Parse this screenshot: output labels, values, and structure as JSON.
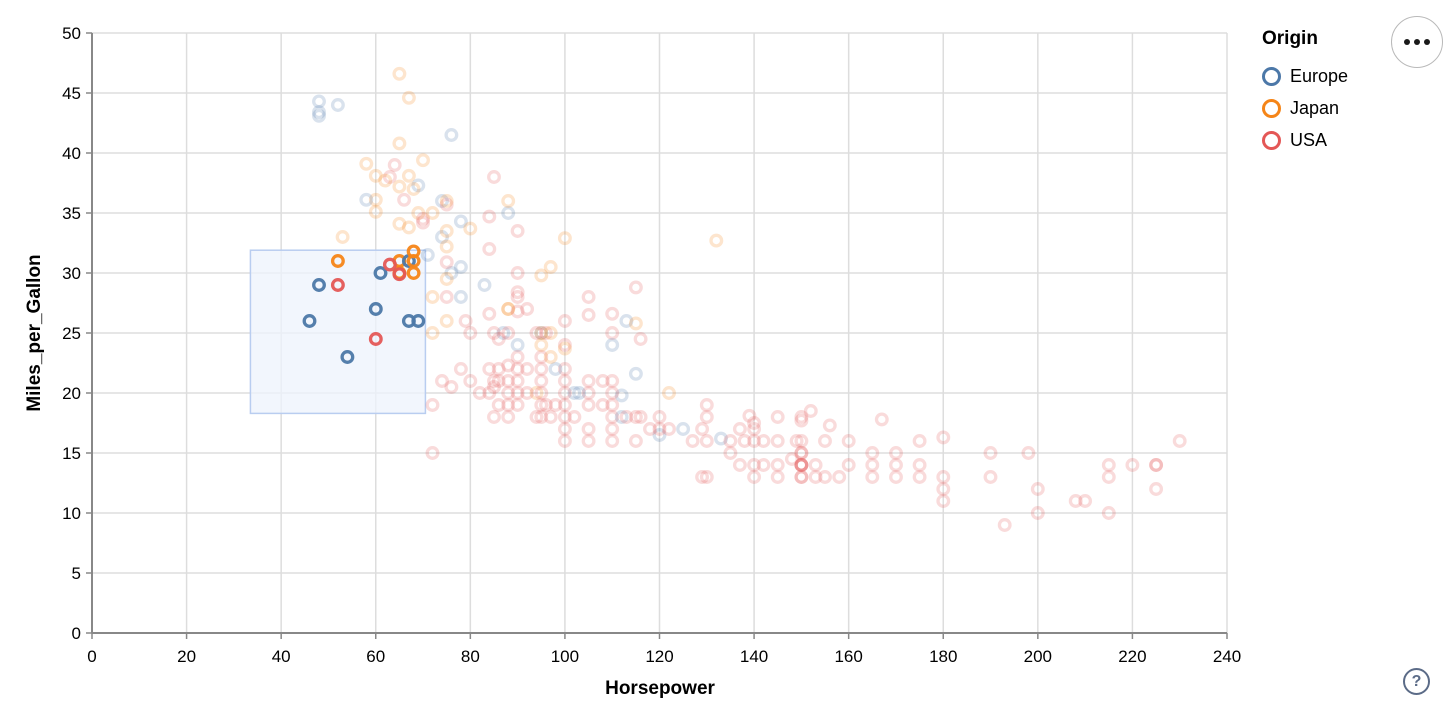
{
  "chart_data": {
    "type": "scatter",
    "title": "",
    "xlabel": "Horsepower",
    "ylabel": "Miles_per_Gallon",
    "xlim": [
      0,
      240
    ],
    "ylim": [
      0,
      50
    ],
    "x_ticks": [
      0,
      20,
      40,
      60,
      80,
      100,
      120,
      140,
      160,
      180,
      200,
      220,
      240
    ],
    "y_ticks": [
      0,
      5,
      10,
      15,
      20,
      25,
      30,
      35,
      40,
      45,
      50
    ],
    "grid": true,
    "legend": {
      "title": "Origin",
      "position": "top-right",
      "entries": [
        {
          "label": "Europe",
          "origin": "E",
          "color": "#4c78a8"
        },
        {
          "label": "Japan",
          "origin": "J",
          "color": "#f58518"
        },
        {
          "label": "USA",
          "origin": "U",
          "color": "#e45756"
        }
      ]
    },
    "origin_colors": {
      "E": "#4c78a8",
      "J": "#f58518",
      "U": "#e45756"
    },
    "brush_selection": {
      "hp": [
        33.5,
        70.5
      ],
      "mpg": [
        18.3,
        31.9
      ],
      "fill": "#eef3fc",
      "fill_opacity": 0.75,
      "stroke": "#b9cdf0"
    },
    "point_style": {
      "radius": 5.3,
      "stroke_width": 3.3,
      "faded_opacity": 0.21,
      "selected_opacity": 0.95
    },
    "series_key": [
      "Horsepower",
      "Miles_per_Gallon",
      "Origin"
    ],
    "points": [
      [
        65,
        46.6,
        "J"
      ],
      [
        67,
        44.6,
        "J"
      ],
      [
        48,
        44.3,
        "E"
      ],
      [
        52,
        44,
        "E"
      ],
      [
        48,
        43.4,
        "E"
      ],
      [
        48,
        43.1,
        "E"
      ],
      [
        76,
        41.5,
        "E"
      ],
      [
        65,
        40.8,
        "J"
      ],
      [
        70,
        39.4,
        "J"
      ],
      [
        58,
        39.1,
        "J"
      ],
      [
        64,
        39,
        "U"
      ],
      [
        60,
        38.1,
        "J"
      ],
      [
        67,
        38.1,
        "J"
      ],
      [
        63,
        38,
        "U"
      ],
      [
        85,
        38,
        "U"
      ],
      [
        62,
        37.7,
        "J"
      ],
      [
        65,
        37.2,
        "J"
      ],
      [
        69,
        37.3,
        "E"
      ],
      [
        68,
        37,
        "J"
      ],
      [
        74,
        36,
        "E"
      ],
      [
        66,
        36.1,
        "U"
      ],
      [
        60,
        36.1,
        "J"
      ],
      [
        58,
        36.1,
        "E"
      ],
      [
        88,
        35,
        "E"
      ],
      [
        60,
        35.1,
        "J"
      ],
      [
        69,
        35,
        "J"
      ],
      [
        84,
        34.7,
        "U"
      ],
      [
        70,
        34.5,
        "U"
      ],
      [
        70,
        34.2,
        "U"
      ],
      [
        78,
        34.3,
        "E"
      ],
      [
        65,
        34.1,
        "J"
      ],
      [
        67,
        33.8,
        "J"
      ],
      [
        53,
        33,
        "J"
      ],
      [
        74,
        33,
        "E"
      ],
      [
        75,
        33.5,
        "J"
      ],
      [
        72,
        35,
        "J"
      ],
      [
        75,
        35.7,
        "U"
      ],
      [
        88,
        36,
        "J"
      ],
      [
        75,
        36,
        "J"
      ],
      [
        80,
        33.7,
        "J"
      ],
      [
        90,
        33.5,
        "U"
      ],
      [
        100,
        32.9,
        "J"
      ],
      [
        132,
        32.7,
        "J"
      ],
      [
        75,
        32.2,
        "J"
      ],
      [
        84,
        32,
        "U"
      ],
      [
        52,
        31,
        "J"
      ],
      [
        65,
        31,
        "J"
      ],
      [
        67,
        31,
        "E"
      ],
      [
        61,
        30,
        "E"
      ],
      [
        65,
        30,
        "J"
      ],
      [
        68,
        31.8,
        "J"
      ],
      [
        68,
        31,
        "J"
      ],
      [
        68,
        30,
        "J"
      ],
      [
        63,
        30.7,
        "U"
      ],
      [
        65,
        29.9,
        "U"
      ],
      [
        48,
        29,
        "E"
      ],
      [
        52,
        29,
        "U"
      ],
      [
        71,
        31.5,
        "E"
      ],
      [
        76,
        30,
        "E"
      ],
      [
        83,
        29,
        "E"
      ],
      [
        97,
        30.5,
        "J"
      ],
      [
        75,
        30.9,
        "U"
      ],
      [
        75,
        29.5,
        "J"
      ],
      [
        78,
        30.5,
        "E"
      ],
      [
        95,
        29.8,
        "J"
      ],
      [
        90,
        30,
        "U"
      ],
      [
        90,
        28.4,
        "U"
      ],
      [
        46,
        26,
        "E"
      ],
      [
        60,
        27,
        "E"
      ],
      [
        67,
        26,
        "E"
      ],
      [
        69,
        26,
        "E"
      ],
      [
        60,
        24.5,
        "U"
      ],
      [
        54,
        23,
        "E"
      ],
      [
        88,
        27,
        "J"
      ],
      [
        88,
        27,
        "J"
      ],
      [
        87,
        25,
        "E"
      ],
      [
        90,
        24,
        "E"
      ],
      [
        95,
        25,
        "E"
      ],
      [
        113,
        26,
        "E"
      ],
      [
        95,
        24,
        "J"
      ],
      [
        95,
        25,
        "J"
      ],
      [
        75,
        28,
        "U"
      ],
      [
        80,
        25,
        "U"
      ],
      [
        79,
        26,
        "U"
      ],
      [
        84,
        26.6,
        "U"
      ],
      [
        90,
        26.8,
        "U"
      ],
      [
        110,
        26.6,
        "U"
      ],
      [
        105,
        26.5,
        "U"
      ],
      [
        110,
        25,
        "U"
      ],
      [
        115,
        25.8,
        "J"
      ],
      [
        100,
        26,
        "U"
      ],
      [
        92,
        27,
        "U"
      ],
      [
        96,
        25,
        "U"
      ],
      [
        72,
        25,
        "J"
      ],
      [
        86,
        24.5,
        "U"
      ],
      [
        116,
        24.5,
        "U"
      ],
      [
        110,
        24,
        "E"
      ],
      [
        72,
        28,
        "J"
      ],
      [
        75,
        26,
        "J"
      ],
      [
        85,
        25,
        "U"
      ],
      [
        88,
        25,
        "U"
      ],
      [
        97,
        25,
        "J"
      ],
      [
        94,
        25,
        "U"
      ],
      [
        100,
        24,
        "U"
      ],
      [
        90,
        28,
        "U"
      ],
      [
        78,
        28,
        "E"
      ],
      [
        105,
        28,
        "U"
      ],
      [
        115,
        28.8,
        "U"
      ],
      [
        95,
        22,
        "U"
      ],
      [
        85,
        21,
        "U"
      ],
      [
        90,
        21,
        "U"
      ],
      [
        86,
        21,
        "U"
      ],
      [
        88,
        21,
        "U"
      ],
      [
        90,
        20,
        "U"
      ],
      [
        95,
        23,
        "U"
      ],
      [
        95,
        21,
        "U"
      ],
      [
        100,
        22,
        "U"
      ],
      [
        100,
        21,
        "U"
      ],
      [
        105,
        21,
        "U"
      ],
      [
        105,
        20,
        "U"
      ],
      [
        88,
        22.3,
        "U"
      ],
      [
        90,
        22,
        "U"
      ],
      [
        90,
        23,
        "U"
      ],
      [
        85,
        20.5,
        "U"
      ],
      [
        98,
        22,
        "E"
      ],
      [
        102,
        20,
        "E"
      ],
      [
        103,
        20,
        "E"
      ],
      [
        115,
        21.6,
        "E"
      ],
      [
        112,
        19.8,
        "E"
      ],
      [
        122,
        20,
        "J"
      ],
      [
        100,
        23.7,
        "J"
      ],
      [
        94,
        20,
        "J"
      ],
      [
        97,
        23,
        "J"
      ],
      [
        110,
        21,
        "U"
      ],
      [
        110,
        20,
        "U"
      ],
      [
        108,
        21,
        "U"
      ],
      [
        92,
        22,
        "U"
      ],
      [
        84,
        22,
        "U"
      ],
      [
        86,
        22,
        "U"
      ],
      [
        74,
        21,
        "U"
      ],
      [
        76,
        20.5,
        "U"
      ],
      [
        80,
        21,
        "U"
      ],
      [
        78,
        22,
        "U"
      ],
      [
        82,
        20,
        "U"
      ],
      [
        72,
        19,
        "U"
      ],
      [
        97,
        18,
        "U"
      ],
      [
        100,
        19,
        "U"
      ],
      [
        88,
        19,
        "U"
      ],
      [
        100,
        18,
        "U"
      ],
      [
        110,
        18,
        "U"
      ],
      [
        110,
        19,
        "U"
      ],
      [
        88,
        18,
        "U"
      ],
      [
        105,
        19,
        "U"
      ],
      [
        105,
        16,
        "U"
      ],
      [
        100,
        17,
        "U"
      ],
      [
        95,
        18,
        "U"
      ],
      [
        100,
        16,
        "U"
      ],
      [
        110,
        17,
        "U"
      ],
      [
        112,
        18,
        "E"
      ],
      [
        120,
        16.5,
        "E"
      ],
      [
        125,
        17,
        "E"
      ],
      [
        133,
        16.2,
        "E"
      ],
      [
        130,
        18,
        "U"
      ],
      [
        140,
        17,
        "U"
      ],
      [
        150,
        18,
        "U"
      ],
      [
        150,
        16,
        "U"
      ],
      [
        139,
        18.1,
        "U"
      ],
      [
        140,
        17.5,
        "U"
      ],
      [
        150,
        17.7,
        "U"
      ],
      [
        130,
        19,
        "U"
      ],
      [
        129,
        17,
        "U"
      ],
      [
        138,
        16,
        "U"
      ],
      [
        155,
        16,
        "U"
      ],
      [
        165,
        15,
        "U"
      ],
      [
        150,
        15,
        "U"
      ],
      [
        150,
        15,
        "U"
      ],
      [
        170,
        15,
        "U"
      ],
      [
        190,
        15,
        "U"
      ],
      [
        198,
        15,
        "U"
      ],
      [
        149,
        16,
        "U"
      ],
      [
        145,
        18,
        "U"
      ],
      [
        142,
        16,
        "U"
      ],
      [
        137,
        17,
        "U"
      ],
      [
        152,
        18.5,
        "U"
      ],
      [
        156,
        17.3,
        "U"
      ],
      [
        167,
        17.8,
        "U"
      ],
      [
        180,
        16.3,
        "U"
      ],
      [
        230,
        16,
        "U"
      ],
      [
        88,
        20,
        "U"
      ],
      [
        90,
        19,
        "U"
      ],
      [
        95,
        20,
        "U"
      ],
      [
        95,
        19,
        "U"
      ],
      [
        100,
        20,
        "U"
      ],
      [
        105,
        17,
        "U"
      ],
      [
        110,
        16,
        "U"
      ],
      [
        115,
        18,
        "U"
      ],
      [
        115,
        16,
        "U"
      ],
      [
        120,
        18,
        "U"
      ],
      [
        120,
        17,
        "U"
      ],
      [
        130,
        16,
        "U"
      ],
      [
        135,
        16,
        "U"
      ],
      [
        135,
        15,
        "U"
      ],
      [
        140,
        16,
        "U"
      ],
      [
        145,
        16,
        "U"
      ],
      [
        84,
        20,
        "U"
      ],
      [
        86,
        19,
        "U"
      ],
      [
        92,
        20,
        "U"
      ],
      [
        94,
        18,
        "U"
      ],
      [
        96,
        19,
        "U"
      ],
      [
        98,
        19,
        "U"
      ],
      [
        102,
        18,
        "U"
      ],
      [
        108,
        19,
        "U"
      ],
      [
        113,
        18,
        "U"
      ],
      [
        116,
        18,
        "U"
      ],
      [
        118,
        17,
        "U"
      ],
      [
        122,
        17,
        "U"
      ],
      [
        127,
        16,
        "U"
      ],
      [
        85,
        18,
        "U"
      ],
      [
        72,
        15,
        "U"
      ],
      [
        175,
        16,
        "U"
      ],
      [
        160,
        16,
        "U"
      ],
      [
        220,
        14,
        "U"
      ],
      [
        215,
        14,
        "U"
      ],
      [
        225,
        14,
        "U"
      ],
      [
        225,
        14,
        "U"
      ],
      [
        160,
        14,
        "U"
      ],
      [
        150,
        14,
        "U"
      ],
      [
        150,
        14,
        "U"
      ],
      [
        150,
        14,
        "U"
      ],
      [
        150,
        14,
        "U"
      ],
      [
        153,
        14,
        "U"
      ],
      [
        153,
        13,
        "U"
      ],
      [
        165,
        14,
        "U"
      ],
      [
        165,
        13,
        "U"
      ],
      [
        170,
        13,
        "U"
      ],
      [
        175,
        14,
        "U"
      ],
      [
        175,
        13,
        "U"
      ],
      [
        180,
        12,
        "U"
      ],
      [
        170,
        14,
        "U"
      ],
      [
        145,
        14,
        "U"
      ],
      [
        137,
        14,
        "U"
      ],
      [
        150,
        13,
        "U"
      ],
      [
        150,
        13,
        "U"
      ],
      [
        155,
        13,
        "U"
      ],
      [
        215,
        10,
        "U"
      ],
      [
        200,
        10,
        "U"
      ],
      [
        210,
        11,
        "U"
      ],
      [
        193,
        9,
        "U"
      ],
      [
        215,
        13,
        "U"
      ],
      [
        190,
        13,
        "U"
      ],
      [
        208,
        11,
        "U"
      ],
      [
        180,
        13,
        "U"
      ],
      [
        145,
        13,
        "U"
      ],
      [
        140,
        13,
        "U"
      ],
      [
        140,
        14,
        "U"
      ],
      [
        148,
        14.5,
        "U"
      ],
      [
        129,
        13,
        "U"
      ],
      [
        142,
        14,
        "U"
      ],
      [
        158,
        13,
        "U"
      ],
      [
        180,
        11,
        "U"
      ],
      [
        200,
        12,
        "U"
      ],
      [
        225,
        12,
        "U"
      ],
      [
        130,
        13,
        "U"
      ]
    ]
  },
  "controls": {
    "menu_button_glyph": "•••",
    "help_button_label": "?"
  }
}
